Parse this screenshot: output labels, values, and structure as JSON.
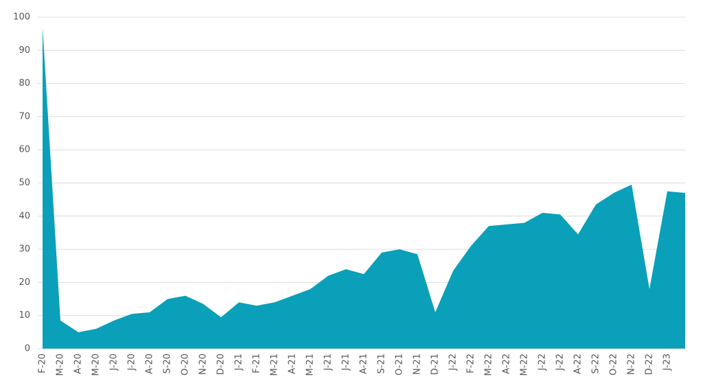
{
  "chart_data": {
    "type": "area",
    "categories": [
      "F-20",
      "M-20",
      "A-20",
      "M-20",
      "J-20",
      "J-20",
      "A-20",
      "S-20",
      "O-20",
      "N-20",
      "D-20",
      "J-21",
      "F-21",
      "M-21",
      "A-21",
      "M-21",
      "J-21",
      "J-21",
      "A-21",
      "S-21",
      "O-21",
      "N-21",
      "D-21",
      "J-22",
      "F-22",
      "M-22",
      "A-22",
      "M-22",
      "J-22",
      "J-22",
      "A-22",
      "S-22",
      "O-22",
      "N-22",
      "D-22",
      "J-23",
      null
    ],
    "values": [
      97,
      8.5,
      5,
      6,
      8.5,
      10.5,
      11,
      15,
      16,
      13.5,
      9.5,
      14,
      13,
      14,
      16,
      18,
      22,
      24,
      22.5,
      29,
      30,
      28.5,
      11,
      23.5,
      31,
      37,
      37.5,
      38,
      41,
      40.5,
      34.5,
      43.5,
      47,
      49.5,
      18,
      47.5,
      47
    ],
    "color": "#0aa0b9",
    "ylim": [
      0,
      100
    ],
    "yticks": [
      0,
      10,
      20,
      30,
      40,
      50,
      60,
      70,
      80,
      90,
      100
    ],
    "grid": true
  }
}
